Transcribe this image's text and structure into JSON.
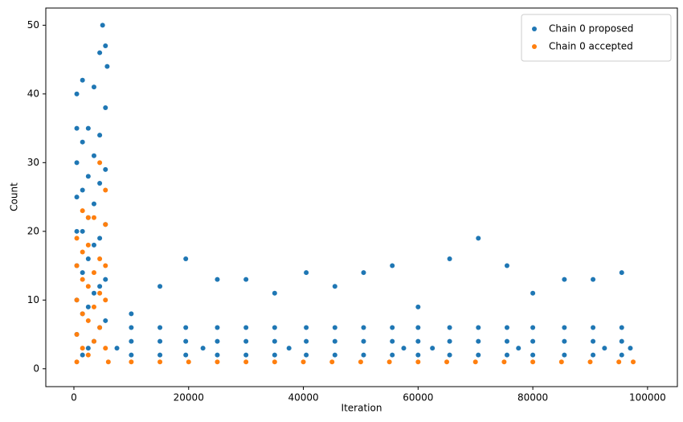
{
  "chart_data": {
    "type": "scatter",
    "xlabel": "Iteration",
    "ylabel": "Count",
    "xlim": [
      -4900,
      105200
    ],
    "ylim": [
      -2.6,
      52.5
    ],
    "xticks": [
      0,
      20000,
      40000,
      60000,
      80000,
      100000
    ],
    "yticks": [
      0,
      10,
      20,
      30,
      40,
      50
    ],
    "legend": "upper right",
    "series": [
      {
        "name": "Chain 0 proposed",
        "color": "#1f77b4",
        "x": [
          500,
          500,
          500,
          500,
          500,
          500,
          500,
          500,
          1500,
          1500,
          1500,
          1500,
          1500,
          1500,
          1500,
          2500,
          2500,
          2500,
          2500,
          2500,
          2500,
          3500,
          3500,
          3500,
          3500,
          3500,
          3500,
          4500,
          4500,
          4500,
          4500,
          4500,
          4500,
          5000,
          5500,
          5500,
          5500,
          5500,
          5500,
          5500,
          5800,
          10000,
          10000,
          10000,
          10000,
          15000,
          15000,
          15000,
          15000,
          19500,
          19500,
          19500,
          19500,
          25000,
          25000,
          25000,
          25000,
          30000,
          30000,
          30000,
          30000,
          35000,
          35000,
          35000,
          35000,
          40500,
          40500,
          40500,
          40500,
          45500,
          45500,
          45500,
          45500,
          50500,
          50500,
          50500,
          50500,
          55500,
          55500,
          55500,
          55500,
          60000,
          60000,
          60000,
          60000,
          65500,
          65500,
          65500,
          65500,
          70500,
          70500,
          70500,
          70500,
          75500,
          75500,
          75500,
          75500,
          80000,
          80000,
          80000,
          80000,
          85500,
          85500,
          85500,
          85500,
          90500,
          90500,
          90500,
          90500,
          95500,
          95500,
          95500,
          95500,
          7500,
          22500,
          37500,
          57500,
          62500,
          77500,
          92500,
          97000
        ],
        "y": [
          5,
          10,
          15,
          20,
          25,
          30,
          35,
          40,
          2,
          8,
          14,
          20,
          26,
          33,
          42,
          3,
          9,
          16,
          22,
          28,
          35,
          4,
          11,
          18,
          24,
          31,
          41,
          6,
          12,
          19,
          27,
          34,
          46,
          50,
          7,
          13,
          21,
          29,
          38,
          47,
          44,
          2,
          4,
          6,
          8,
          2,
          4,
          6,
          12,
          2,
          4,
          6,
          16,
          2,
          4,
          6,
          13,
          2,
          4,
          6,
          13,
          2,
          4,
          6,
          11,
          2,
          4,
          6,
          14,
          2,
          4,
          6,
          12,
          2,
          4,
          6,
          14,
          2,
          4,
          6,
          15,
          2,
          4,
          6,
          9,
          2,
          4,
          6,
          16,
          2,
          4,
          6,
          19,
          2,
          4,
          6,
          15,
          2,
          4,
          6,
          11,
          2,
          4,
          6,
          13,
          2,
          4,
          6,
          13,
          2,
          4,
          6,
          14,
          3,
          3,
          3,
          3,
          3,
          3,
          3,
          3
        ]
      },
      {
        "name": "Chain 0 accepted",
        "color": "#ff7f0e",
        "x": [
          500,
          500,
          500,
          500,
          500,
          1500,
          1500,
          1500,
          1500,
          1500,
          2500,
          2500,
          2500,
          2500,
          2500,
          3500,
          3500,
          3500,
          3500,
          4500,
          4500,
          4500,
          4500,
          5500,
          5500,
          5500,
          5500,
          5500,
          6000,
          10000,
          15000,
          20000,
          25000,
          30000,
          35000,
          40000,
          45000,
          50000,
          55000,
          60000,
          65000,
          70000,
          75000,
          80000,
          85000,
          90000,
          95000,
          97500
        ],
        "y": [
          1,
          5,
          10,
          15,
          19,
          3,
          8,
          13,
          17,
          23,
          2,
          7,
          12,
          18,
          22,
          4,
          9,
          14,
          22,
          6,
          11,
          16,
          30,
          3,
          10,
          15,
          21,
          26,
          1,
          1,
          1,
          1,
          1,
          1,
          1,
          1,
          1,
          1,
          1,
          1,
          1,
          1,
          1,
          1,
          1,
          1,
          1,
          1
        ]
      }
    ]
  }
}
